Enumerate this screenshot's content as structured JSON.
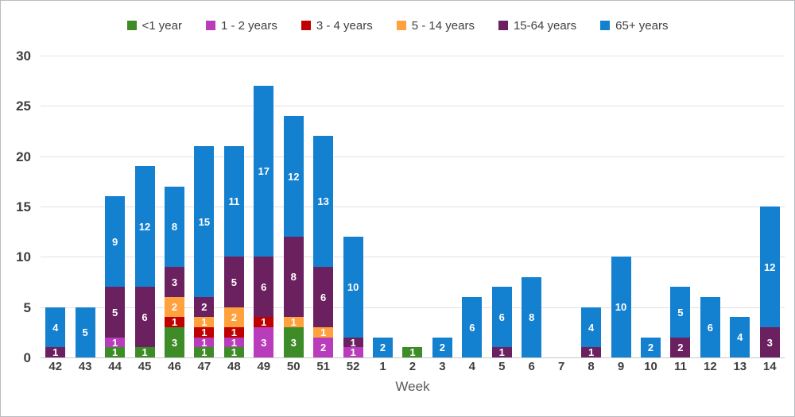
{
  "chart_data": {
    "type": "bar",
    "stacked": true,
    "title": "",
    "xlabel": "Week",
    "ylabel": "",
    "ylim": [
      0,
      30
    ],
    "yticks": [
      0,
      5,
      10,
      15,
      20,
      25,
      30
    ],
    "grid": true,
    "legend_position": "top",
    "categories": [
      "42",
      "43",
      "44",
      "45",
      "46",
      "47",
      "48",
      "49",
      "50",
      "51",
      "52",
      "1",
      "2",
      "3",
      "4",
      "5",
      "6",
      "7",
      "8",
      "9",
      "10",
      "11",
      "12",
      "13",
      "14"
    ],
    "series": [
      {
        "name": "<1 year",
        "color": "#3E8C28",
        "values": [
          0,
          0,
          1,
          1,
          3,
          1,
          1,
          0,
          3,
          0,
          0,
          0,
          1,
          0,
          0,
          0,
          0,
          0,
          0,
          0,
          0,
          0,
          0,
          0,
          0
        ]
      },
      {
        "name": "1 - 2 years",
        "color": "#B93CBC",
        "values": [
          0,
          0,
          1,
          0,
          0,
          1,
          1,
          3,
          0,
          2,
          1,
          0,
          0,
          0,
          0,
          0,
          0,
          0,
          0,
          0,
          0,
          0,
          0,
          0,
          0
        ]
      },
      {
        "name": "3 - 4 years",
        "color": "#C00000",
        "values": [
          0,
          0,
          0,
          0,
          1,
          1,
          1,
          1,
          0,
          0,
          0,
          0,
          0,
          0,
          0,
          0,
          0,
          0,
          0,
          0,
          0,
          0,
          0,
          0,
          0
        ]
      },
      {
        "name": "5 - 14 years",
        "color": "#FFA13C",
        "values": [
          0,
          0,
          0,
          0,
          2,
          1,
          2,
          0,
          1,
          1,
          0,
          0,
          0,
          0,
          0,
          0,
          0,
          0,
          0,
          0,
          0,
          0,
          0,
          0,
          0
        ]
      },
      {
        "name": "15-64 years",
        "color": "#6B2060",
        "values": [
          1,
          0,
          5,
          6,
          3,
          2,
          5,
          6,
          8,
          6,
          1,
          0,
          0,
          0,
          0,
          1,
          0,
          0,
          1,
          0,
          0,
          2,
          0,
          0,
          3
        ]
      },
      {
        "name": "65+ years",
        "color": "#1480D0",
        "values": [
          4,
          5,
          9,
          12,
          8,
          15,
          11,
          17,
          12,
          13,
          10,
          2,
          0,
          2,
          6,
          6,
          8,
          0,
          4,
          10,
          2,
          5,
          6,
          4,
          12
        ]
      }
    ]
  }
}
